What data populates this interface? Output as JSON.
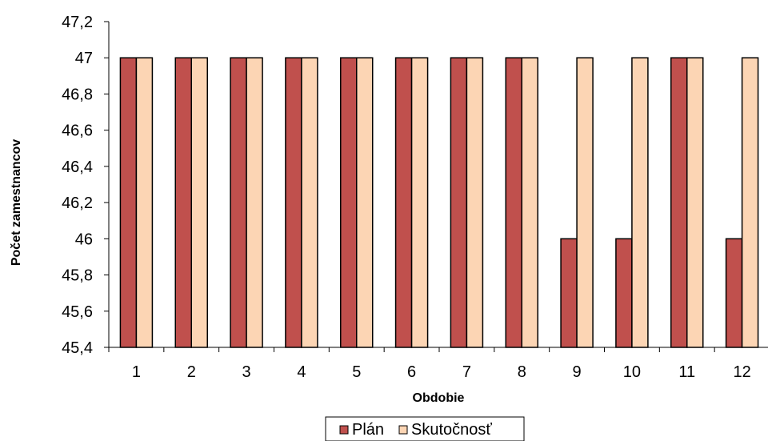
{
  "chart_data": {
    "type": "bar",
    "categories": [
      "1",
      "2",
      "3",
      "4",
      "5",
      "6",
      "7",
      "8",
      "9",
      "10",
      "11",
      "12"
    ],
    "series": [
      {
        "name": "Plán",
        "values": [
          47,
          47,
          47,
          47,
          47,
          47,
          47,
          47,
          46,
          46,
          47,
          46
        ],
        "color": "#c0504d"
      },
      {
        "name": "Skutočnosť",
        "values": [
          47,
          47,
          47,
          47,
          47,
          47,
          47,
          47,
          47,
          47,
          47,
          47
        ],
        "color": "#fcd5b4"
      }
    ],
    "title": "",
    "xlabel": "Obdobie",
    "ylabel": "Počet zamestnancov",
    "ylim": [
      45.4,
      47.2
    ],
    "ytick_values": [
      45.4,
      45.6,
      45.8,
      46,
      46.2,
      46.4,
      46.6,
      46.8,
      47,
      47.2
    ],
    "ytick_labels": [
      "45,4",
      "45,6",
      "45,8",
      "46",
      "46,2",
      "46,4",
      "46,6",
      "46,8",
      "47",
      "47,2"
    ],
    "grid": false,
    "legend_position": "bottom"
  }
}
